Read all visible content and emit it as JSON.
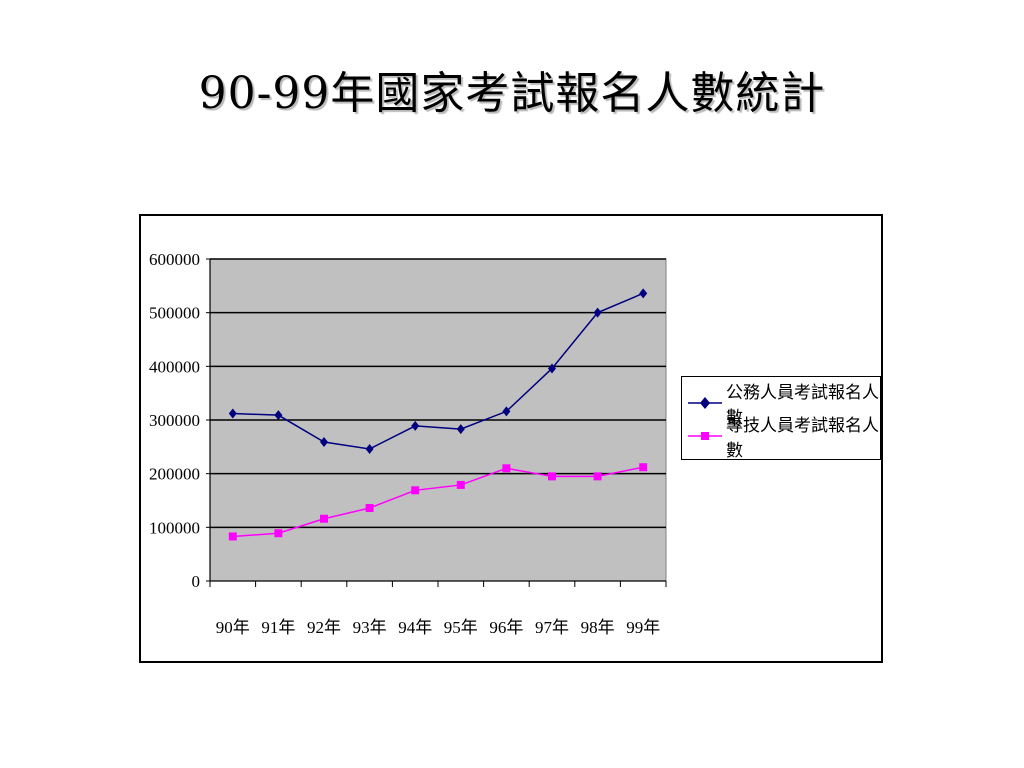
{
  "slide": {
    "title": "90-99年國家考試報名人數統計"
  },
  "chart_data": {
    "type": "line",
    "categories": [
      "90年",
      "91年",
      "92年",
      "93年",
      "94年",
      "95年",
      "96年",
      "97年",
      "98年",
      "99年"
    ],
    "series": [
      {
        "name": "公務人員考試報名人數",
        "color": "#000080",
        "marker": "diamond",
        "values": [
          312000,
          309000,
          259000,
          246000,
          289000,
          283000,
          316000,
          396000,
          500000,
          536000
        ]
      },
      {
        "name": "專技人員考試報名人數",
        "color": "#ff00ff",
        "marker": "square",
        "values": [
          83000,
          89000,
          116000,
          136000,
          169000,
          179000,
          210000,
          195000,
          195000,
          212000
        ]
      }
    ],
    "ylim": [
      0,
      600000
    ],
    "yticks": [
      "0",
      "100000",
      "200000",
      "300000",
      "400000",
      "500000",
      "600000"
    ],
    "plot_background": "#c0c0c0",
    "grid": true,
    "legend": "right"
  }
}
